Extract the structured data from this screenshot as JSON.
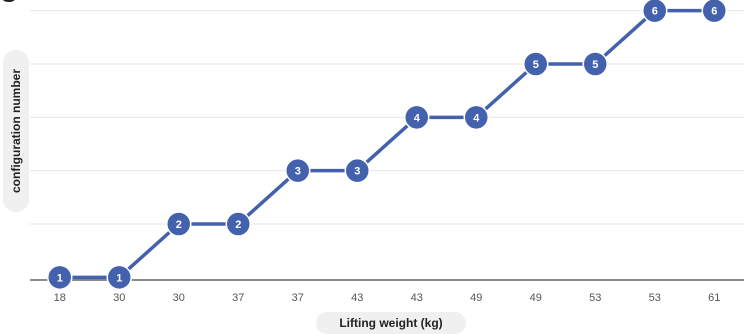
{
  "chart_data": {
    "type": "line",
    "title_fragment": "g",
    "xlabel": "Lifting weight (kg)",
    "ylabel": "configuration number",
    "categories": [
      "18",
      "30",
      "30",
      "37",
      "37",
      "43",
      "43",
      "49",
      "49",
      "53",
      "53",
      "61"
    ],
    "series": [
      {
        "values": [
          1,
          1,
          2,
          2,
          3,
          3,
          4,
          4,
          5,
          5,
          6,
          6
        ],
        "color": "#4361ad"
      }
    ],
    "ylim": [
      0.95,
      6.2
    ],
    "grid": true,
    "colors": {
      "line": "#4361ad",
      "marker": "#4361ad",
      "marker_border": "#ffffff",
      "gridline": "#e4e4e4",
      "axis": "#666666"
    }
  }
}
